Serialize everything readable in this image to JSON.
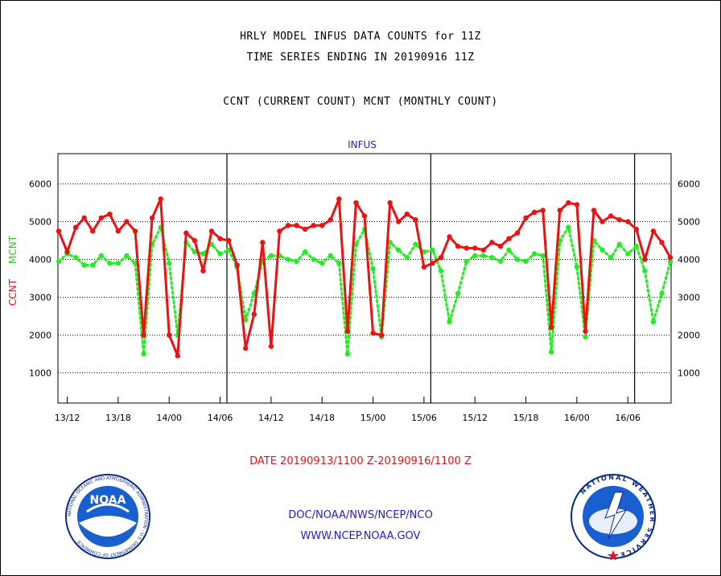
{
  "header": {
    "title1": "HRLY MODEL INFUS DATA COUNTS for 11Z",
    "title2": "TIME SERIES ENDING IN 20190916 11Z",
    "subtitle": "CCNT (CURRENT COUNT) MCNT (MONTHLY COUNT)"
  },
  "footer": {
    "date_range": "DATE 20190913/1100 Z-20190916/1100 Z",
    "org": "DOC/NOAA/NWS/NCEP/NCO",
    "url": "WWW.NCEP.NOAA.GOV"
  },
  "logos": {
    "left": "NOAA",
    "left_ring": "NATIONAL OCEANIC AND ATMOSPHERIC ADMINISTRATION · U.S. DEPARTMENT OF COMMERCE",
    "right_ring": "NATIONAL WEATHER SERVICE"
  },
  "colors": {
    "ccnt": "#ee1111",
    "mcnt": "#22ee22",
    "title": "#000000",
    "panel_title": "#2222cc",
    "date": "#ee1111",
    "org": "#2222cc"
  },
  "chart_data": {
    "type": "line",
    "title": "INFUS",
    "ylabel_left": [
      "CCNT",
      "MCNT"
    ],
    "ylim": [
      200,
      6800
    ],
    "yticks": [
      1000,
      2000,
      3000,
      4000,
      5000,
      6000
    ],
    "grid": true,
    "x_start_hours": 0,
    "xticks": [
      {
        "hour": 1,
        "label": "13/12"
      },
      {
        "hour": 7,
        "label": "13/18"
      },
      {
        "hour": 13,
        "label": "14/00"
      },
      {
        "hour": 19,
        "label": "14/06"
      },
      {
        "hour": 25,
        "label": "14/12"
      },
      {
        "hour": 31,
        "label": "14/18"
      },
      {
        "hour": 37,
        "label": "15/00"
      },
      {
        "hour": 43,
        "label": "15/06"
      },
      {
        "hour": 49,
        "label": "15/12"
      },
      {
        "hour": 55,
        "label": "15/18"
      },
      {
        "hour": 61,
        "label": "16/00"
      },
      {
        "hour": 67,
        "label": "16/06"
      }
    ],
    "day_boundaries": [
      19.8,
      43.8,
      67.8
    ],
    "series": [
      {
        "name": "CCNT",
        "values": [
          4750,
          4200,
          4850,
          5100,
          4750,
          5100,
          5200,
          4750,
          5000,
          4750,
          2000,
          5100,
          5600,
          2000,
          1450,
          4700,
          4500,
          3700,
          4750,
          4550,
          4500,
          3850,
          1650,
          2550,
          4450,
          1700,
          4750,
          4900,
          4900,
          4800,
          4900,
          4900,
          5050,
          5600,
          2100,
          5500,
          5150,
          2050,
          2000,
          5500,
          5000,
          5200,
          5050,
          3800,
          3900,
          4050,
          4600,
          4350,
          4300,
          4300,
          4250,
          4450,
          4350,
          4550,
          4700,
          5100,
          5250,
          5300,
          2200,
          5300,
          5500,
          5450,
          2100,
          5300,
          5000,
          5150,
          5050,
          5000,
          4800,
          4000,
          4750,
          4450,
          4050
        ]
      },
      {
        "name": "MCNT",
        "values": [
          3950,
          4150,
          4050,
          3850,
          3850,
          4100,
          3900,
          3900,
          4100,
          3900,
          1500,
          4400,
          4850,
          3900,
          2000,
          4450,
          4200,
          4150,
          4400,
          4150,
          4250,
          3800,
          2400,
          3100,
          3950,
          4100,
          4100,
          4000,
          3950,
          4200,
          4000,
          3900,
          4100,
          3900,
          1500,
          4400,
          4800,
          3750,
          1950,
          4450,
          4250,
          4050,
          4400,
          4200,
          4250,
          3700,
          2350,
          3100,
          3950,
          4100,
          4100,
          4050,
          3950,
          4250,
          4000,
          3950,
          4150,
          4100,
          1550,
          4500,
          4850,
          3800,
          1950,
          4500,
          4250,
          4050,
          4400,
          4150,
          4350,
          3700,
          2350,
          3100,
          3950
        ]
      }
    ]
  }
}
